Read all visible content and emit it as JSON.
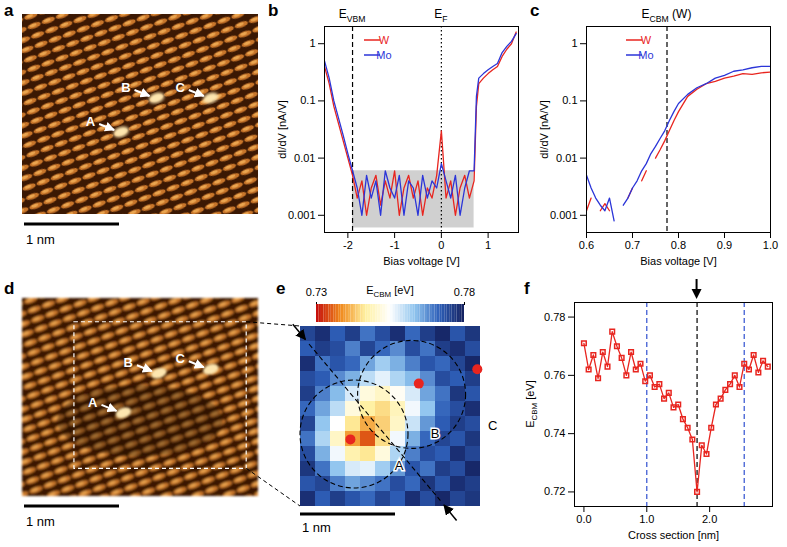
{
  "chart_data": [
    {
      "panel": "a",
      "type": "image",
      "labels": [
        "A",
        "B",
        "C"
      ],
      "scale_bar": "1 nm"
    },
    {
      "panel": "b",
      "type": "line",
      "x_label": "Bias voltage [V]",
      "y_label": "dI/dV [nA/V]",
      "log": "y",
      "xlim": [
        -2.5,
        1.65
      ],
      "ylim": [
        0.0005,
        2
      ],
      "xticks": [
        -2,
        -1,
        0,
        1
      ],
      "yticks": [
        0.001,
        0.01,
        0.1,
        1
      ],
      "grid": false,
      "legend": "upper left",
      "x": [
        -2.5,
        -2.4,
        -2.3,
        -2.2,
        -2.1,
        -2.0,
        -1.9,
        -1.8,
        -1.7,
        -1.6,
        -1.5,
        -1.4,
        -1.3,
        -1.2,
        -1.1,
        -1.0,
        -0.9,
        -0.8,
        -0.7,
        -0.6,
        -0.5,
        -0.4,
        -0.3,
        -0.2,
        -0.1,
        0.0,
        0.1,
        0.2,
        0.3,
        0.4,
        0.5,
        0.6,
        0.7,
        0.75,
        0.8,
        0.9,
        1.0,
        1.1,
        1.2,
        1.3,
        1.4,
        1.5,
        1.6
      ],
      "series": [
        {
          "name": "W",
          "color": "#e8251f",
          "values": [
            0.4,
            0.2,
            0.08,
            0.04,
            0.02,
            0.01,
            0.005,
            0.002,
            0.004,
            0.001,
            0.003,
            0.005,
            0.0015,
            0.004,
            0.002,
            0.006,
            0.001,
            0.003,
            0.005,
            0.002,
            0.004,
            0.001,
            0.003,
            0.002,
            0.005,
            0.03,
            0.002,
            0.004,
            0.001,
            0.003,
            0.005,
            0.002,
            0.004,
            0.08,
            0.2,
            0.25,
            0.3,
            0.35,
            0.4,
            0.6,
            0.8,
            1.0,
            1.6
          ]
        },
        {
          "name": "Mo",
          "color": "#2b35d8",
          "values": [
            0.5,
            0.25,
            0.1,
            0.05,
            0.025,
            0.012,
            0.006,
            0.003,
            0.001,
            0.005,
            0.002,
            0.004,
            0.001,
            0.006,
            0.003,
            0.002,
            0.005,
            0.001,
            0.004,
            0.003,
            0.001,
            0.005,
            0.002,
            0.004,
            0.003,
            0.008,
            0.004,
            0.002,
            0.005,
            0.001,
            0.003,
            0.006,
            0.006,
            0.12,
            0.25,
            0.3,
            0.35,
            0.4,
            0.45,
            0.7,
            0.9,
            1.1,
            1.5
          ]
        }
      ],
      "noise_band": {
        "x": [
          -1.9,
          0.7
        ],
        "y": [
          0.0006,
          0.006
        ]
      },
      "markers": [
        {
          "x": -1.9,
          "label": {
            "main": "E",
            "sub": "VBM"
          },
          "line_style": "dashed",
          "color": "#000000"
        },
        {
          "x": 0,
          "label": {
            "main": "E",
            "sub": "F"
          },
          "line_style": "dotted",
          "color": "#000000"
        }
      ]
    },
    {
      "panel": "c",
      "type": "line",
      "x_label": "Bias voltage [V]",
      "y_label": "dI/dV [nA/V]",
      "log": "y",
      "xlim": [
        0.6,
        1.0
      ],
      "ylim": [
        0.0005,
        2
      ],
      "xticks": [
        0.6,
        0.7,
        0.8,
        0.9,
        {
          "value": 1,
          "label": "1.0"
        }
      ],
      "yticks": [
        0.001,
        0.01,
        0.1,
        1
      ],
      "grid": false,
      "legend": "upper left",
      "x": [
        0.6,
        0.61,
        0.62,
        0.63,
        0.64,
        0.65,
        0.66,
        0.67,
        0.68,
        0.69,
        0.7,
        0.71,
        0.72,
        0.73,
        0.74,
        0.75,
        0.76,
        0.77,
        0.78,
        0.79,
        0.8,
        0.82,
        0.84,
        0.86,
        0.88,
        0.9,
        0.92,
        0.94,
        0.96,
        0.98,
        1.0
      ],
      "series": [
        {
          "name": "W",
          "color": "#e8251f",
          "values": [
            0.0012,
            0.002,
            null,
            0.0012,
            0.0016,
            0.0012,
            null,
            null,
            null,
            0.002,
            0.003,
            null,
            0.004,
            0.006,
            null,
            0.01,
            0.014,
            0.02,
            0.03,
            0.045,
            0.065,
            0.12,
            0.16,
            0.2,
            0.22,
            0.25,
            0.27,
            0.3,
            0.29,
            0.31,
            0.32
          ]
        },
        {
          "name": "Mo",
          "color": "#2b35d8",
          "values": [
            0.005,
            0.003,
            0.002,
            0.0015,
            0.0012,
            0.002,
            0.0008,
            null,
            0.0015,
            0.002,
            0.003,
            0.004,
            0.006,
            0.008,
            0.012,
            0.016,
            0.022,
            0.03,
            0.045,
            0.065,
            0.09,
            0.13,
            0.17,
            0.2,
            0.25,
            0.28,
            0.33,
            0.35,
            0.38,
            0.4,
            0.4
          ]
        }
      ],
      "markers": [
        {
          "x": 0.775,
          "label": {
            "main": "E",
            "sub": "CBM",
            "suffix": " (W)"
          },
          "line_style": "dashed",
          "color": "#000000"
        }
      ]
    },
    {
      "panel": "d",
      "type": "image",
      "labels": [
        "A",
        "B",
        "C"
      ],
      "scale_bar": "1 nm"
    },
    {
      "panel": "e",
      "type": "heatmap",
      "tick_labels": false,
      "clim": [
        0.73,
        0.78
      ],
      "cticks": [
        0.73,
        0.78
      ],
      "colorbar_label": {
        "main": "E",
        "sub": "CBM",
        "suffix": " [eV]"
      },
      "labels": [
        "A",
        "B",
        "C"
      ],
      "scale_bar": "1 nm",
      "cells": [
        [
          0.775,
          0.778,
          0.772,
          0.776,
          0.77,
          0.774,
          0.778,
          0.771,
          0.776,
          0.779,
          0.773,
          0.777
        ],
        [
          0.772,
          0.776,
          0.774,
          0.769,
          0.775,
          0.771,
          0.768,
          0.774,
          0.77,
          0.776,
          0.778,
          0.774
        ],
        [
          0.778,
          0.77,
          0.773,
          0.771,
          0.766,
          0.762,
          0.765,
          0.769,
          0.773,
          0.771,
          0.775,
          0.779
        ],
        [
          0.774,
          0.772,
          0.768,
          0.765,
          0.76,
          0.757,
          0.761,
          0.764,
          0.768,
          0.774,
          0.772,
          0.776
        ],
        [
          0.776,
          0.769,
          0.764,
          0.758,
          0.752,
          0.75,
          0.754,
          0.758,
          0.766,
          0.77,
          0.777,
          0.773
        ],
        [
          0.771,
          0.766,
          0.76,
          0.752,
          0.747,
          0.745,
          0.749,
          0.756,
          0.763,
          0.771,
          0.774,
          0.778
        ],
        [
          0.775,
          0.763,
          0.755,
          0.746,
          0.741,
          0.744,
          0.75,
          0.759,
          0.767,
          0.772,
          0.776,
          0.774
        ],
        [
          0.77,
          0.761,
          0.75,
          0.74,
          0.735,
          0.745,
          0.756,
          0.765,
          0.771,
          0.775,
          0.773,
          0.777
        ],
        [
          0.774,
          0.765,
          0.756,
          0.748,
          0.746,
          0.752,
          0.761,
          0.769,
          0.774,
          0.772,
          0.778,
          0.775
        ],
        [
          0.777,
          0.77,
          0.763,
          0.758,
          0.757,
          0.762,
          0.767,
          0.773,
          0.77,
          0.776,
          0.774,
          0.779
        ],
        [
          0.773,
          0.775,
          0.769,
          0.766,
          0.768,
          0.77,
          0.774,
          0.771,
          0.777,
          0.773,
          0.778,
          0.776
        ],
        [
          0.778,
          0.772,
          0.776,
          0.773,
          0.771,
          0.775,
          0.772,
          0.778,
          0.774,
          0.779,
          0.775,
          0.777
        ]
      ]
    },
    {
      "panel": "f",
      "type": "line",
      "x_label": "Cross section [nm]",
      "y_label": {
        "main": "E",
        "sub": "CBM",
        "suffix": " [eV]"
      },
      "xlim": [
        -0.15,
        3.0
      ],
      "ylim": [
        0.715,
        0.785
      ],
      "xticks": [
        {
          "value": 0,
          "label": "0.0"
        },
        {
          "value": 1,
          "label": "1.0"
        },
        {
          "value": 2,
          "label": "2.0"
        }
      ],
      "yticks": [
        0.72,
        0.74,
        0.76,
        0.78
      ],
      "grid": false,
      "color": "#e8251f",
      "marker": "square",
      "x": [
        0,
        0.075,
        0.15,
        0.225,
        0.3,
        0.375,
        0.45,
        0.525,
        0.6,
        0.675,
        0.75,
        0.825,
        0.9,
        0.975,
        1.05,
        1.125,
        1.2,
        1.275,
        1.35,
        1.425,
        1.5,
        1.575,
        1.65,
        1.725,
        1.8,
        1.875,
        1.95,
        2.025,
        2.1,
        2.175,
        2.25,
        2.325,
        2.4,
        2.475,
        2.55,
        2.625,
        2.7,
        2.775,
        2.85,
        2.925
      ],
      "values": [
        0.771,
        0.762,
        0.767,
        0.759,
        0.768,
        0.763,
        0.775,
        0.77,
        0.766,
        0.76,
        0.768,
        0.762,
        0.764,
        0.758,
        0.76,
        0.756,
        0.757,
        0.752,
        0.754,
        0.749,
        0.75,
        0.745,
        0.742,
        0.738,
        0.72,
        0.736,
        0.733,
        0.742,
        0.75,
        0.752,
        0.755,
        0.757,
        0.76,
        0.756,
        0.764,
        0.762,
        0.767,
        0.761,
        0.765,
        0.763
      ],
      "markers": [
        {
          "x": 1.0,
          "line_style": "dashed",
          "color": "#3050d0"
        },
        {
          "x": 1.8,
          "line_style": "dashed",
          "color": "#000000"
        },
        {
          "x": 2.55,
          "line_style": "dashed",
          "color": "#3050d0"
        }
      ],
      "arrow_x": [
        1.8
      ]
    }
  ]
}
